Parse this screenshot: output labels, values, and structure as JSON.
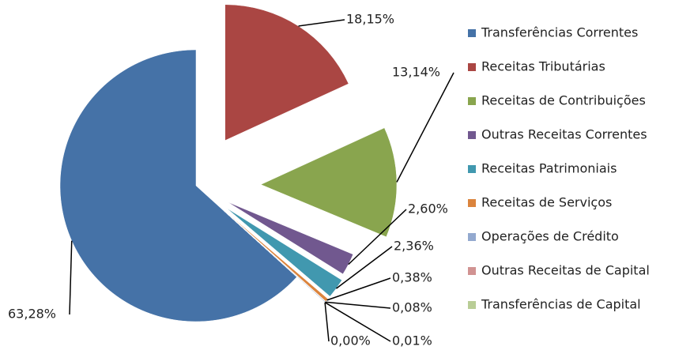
{
  "chart_data": {
    "type": "pie",
    "categories": [
      "Transferências Correntes",
      "Receitas Tributárias",
      "Receitas de Contribuições",
      "Outras Receitas Correntes",
      "Receitas Patrimoniais",
      "Receitas de Serviços",
      "Operações de Crédito",
      "Outras Receitas de Capital",
      "Transferências de Capital"
    ],
    "values": [
      63.28,
      18.15,
      13.14,
      2.6,
      2.36,
      0.38,
      0.08,
      0.0,
      0.01
    ],
    "value_labels": [
      "63,28%",
      "18,15%",
      "13,14%",
      "2,60%",
      "2,36%",
      "0,38%",
      "0,08%",
      "0,00%",
      "0,01%"
    ],
    "colors": [
      "#4572a7",
      "#aa4643",
      "#89a54e",
      "#71588f",
      "#4198af",
      "#db843d",
      "#93a9cf",
      "#d19392",
      "#b9cd96"
    ],
    "legend": "right"
  }
}
